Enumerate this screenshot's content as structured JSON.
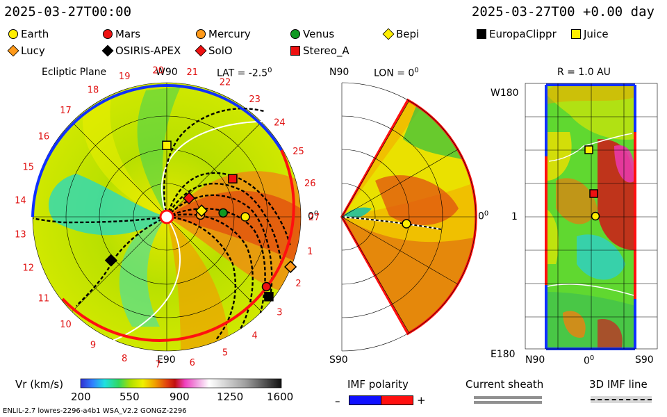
{
  "header": {
    "time_left": "2025-03-27T00:00",
    "time_right": "2025-03-27T00 +0.00 day"
  },
  "legend": [
    {
      "name": "Earth",
      "shape": "circle",
      "color": "#ffee00"
    },
    {
      "name": "Mars",
      "shape": "circle",
      "color": "#ee1111"
    },
    {
      "name": "Mercury",
      "shape": "circle",
      "color": "#ff9a1a"
    },
    {
      "name": "Venus",
      "shape": "circle",
      "color": "#119922"
    },
    {
      "name": "Bepi",
      "shape": "diamond",
      "color": "#ffee00"
    },
    {
      "name": "EuropaClippr",
      "shape": "square",
      "color": "#000000"
    },
    {
      "name": "Juice",
      "shape": "square",
      "color": "#ffee00"
    },
    {
      "name": "Lucy",
      "shape": "diamond",
      "color": "#ff9a1a"
    },
    {
      "name": "OSIRIS-APEX",
      "shape": "diamond",
      "color": "#000000"
    },
    {
      "name": "SolO",
      "shape": "diamond",
      "color": "#ee1111"
    },
    {
      "name": "Stereo_A",
      "shape": "square",
      "color": "#ee1111"
    }
  ],
  "chart_data": [
    {
      "type": "heatmap",
      "title": "Ecliptic Plane",
      "subtitle": "LAT = -2.5",
      "subtitle_sup": "0",
      "top_label": "W90",
      "bottom_label": "E90",
      "right_label": "0",
      "right_label_sup": "0",
      "carrington_ticks": [
        "1",
        "2",
        "3",
        "4",
        "5",
        "6",
        "7",
        "8",
        "9",
        "10",
        "11",
        "12",
        "13",
        "14",
        "15",
        "16",
        "17",
        "18",
        "19",
        "20",
        "21",
        "22",
        "23",
        "24",
        "25",
        "26",
        "27"
      ],
      "spacecraft_positions_deg": [
        {
          "name": "Earth",
          "r_au": 1.0,
          "lon_deg": 0
        },
        {
          "name": "Venus",
          "r_au": 0.72,
          "lon_deg": 4
        },
        {
          "name": "Mercury",
          "r_au": 0.43,
          "lon_deg": 3
        },
        {
          "name": "SolO",
          "r_au": 0.37,
          "lon_deg": 40
        },
        {
          "name": "Bepi",
          "r_au": 0.45,
          "lon_deg": 10
        },
        {
          "name": "Stereo_A",
          "r_au": 0.97,
          "lon_deg": 30
        },
        {
          "name": "Juice",
          "r_au": 0.91,
          "lon_deg": 90
        },
        {
          "name": "OSIRIS-APEX",
          "r_au": 0.9,
          "lon_deg": 218
        },
        {
          "name": "Mars",
          "r_au": 1.55,
          "lon_deg": 325
        },
        {
          "name": "EuropaClippr",
          "r_au": 1.65,
          "lon_deg": 322
        },
        {
          "name": "Lucy",
          "r_au": 1.7,
          "lon_deg": 338
        }
      ]
    },
    {
      "type": "heatmap",
      "title": "LON = 0",
      "title_sup": "0",
      "top_label": "N90",
      "bottom_label": "S90",
      "right_label": "0",
      "right_label_sup": "0"
    },
    {
      "type": "heatmap",
      "title": "R = 1.0 AU",
      "y_top": "W180",
      "y_mid": "1",
      "y_bottom": "E180",
      "x_labels": [
        "N90",
        "0",
        "S90"
      ],
      "x_mid_sup": "0"
    }
  ],
  "colorbar": {
    "label": "Vr (km/s)",
    "ticks": [
      "200",
      "550",
      "900",
      "1250",
      "1600"
    ],
    "range": [
      200,
      1600
    ]
  },
  "imf_polarity": {
    "title": "IMF polarity",
    "minus": "–",
    "plus": "+"
  },
  "current_sheath": {
    "title": "Current sheath"
  },
  "imf_line": {
    "title": "3D IMF line"
  },
  "footer": {
    "text": "ENLIL-2.7 lowres-2296-a4b1 WSA_V2.2 GONGZ-2296"
  }
}
